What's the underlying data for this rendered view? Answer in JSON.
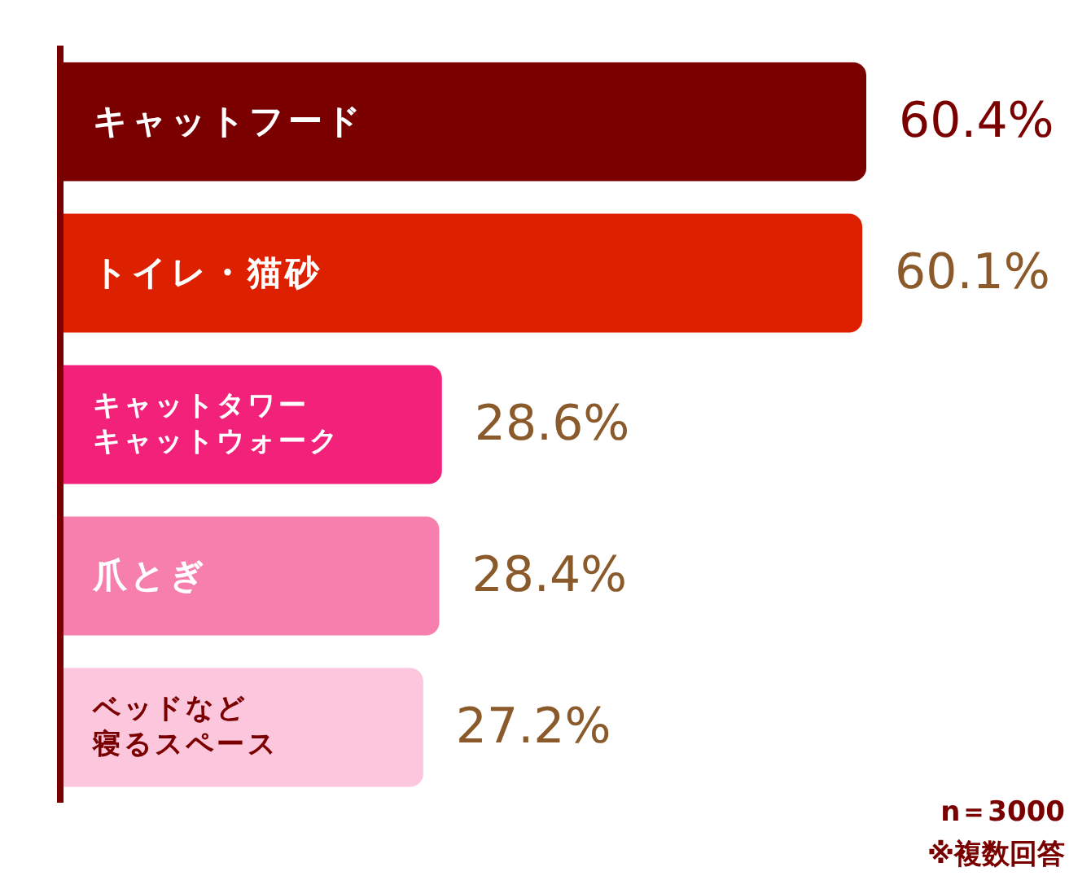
{
  "chart_data": {
    "type": "bar",
    "orientation": "horizontal",
    "categories": [
      "キャットフード",
      "トイレ・猫砂",
      "キャットタワーキャットウォーク",
      "爪とぎ",
      "ベッドなど寝るスペース"
    ],
    "values": [
      60.4,
      60.1,
      28.6,
      28.4,
      27.2
    ],
    "value_labels": [
      "60.4%",
      "60.1%",
      "28.6%",
      "28.4%",
      "27.2%"
    ],
    "colors": [
      "#7a0000",
      "#dc2000",
      "#f2217a",
      "#f77fae",
      "#fcc6dd"
    ],
    "annotations": [
      "n＝3000",
      "※複数回答"
    ]
  }
}
